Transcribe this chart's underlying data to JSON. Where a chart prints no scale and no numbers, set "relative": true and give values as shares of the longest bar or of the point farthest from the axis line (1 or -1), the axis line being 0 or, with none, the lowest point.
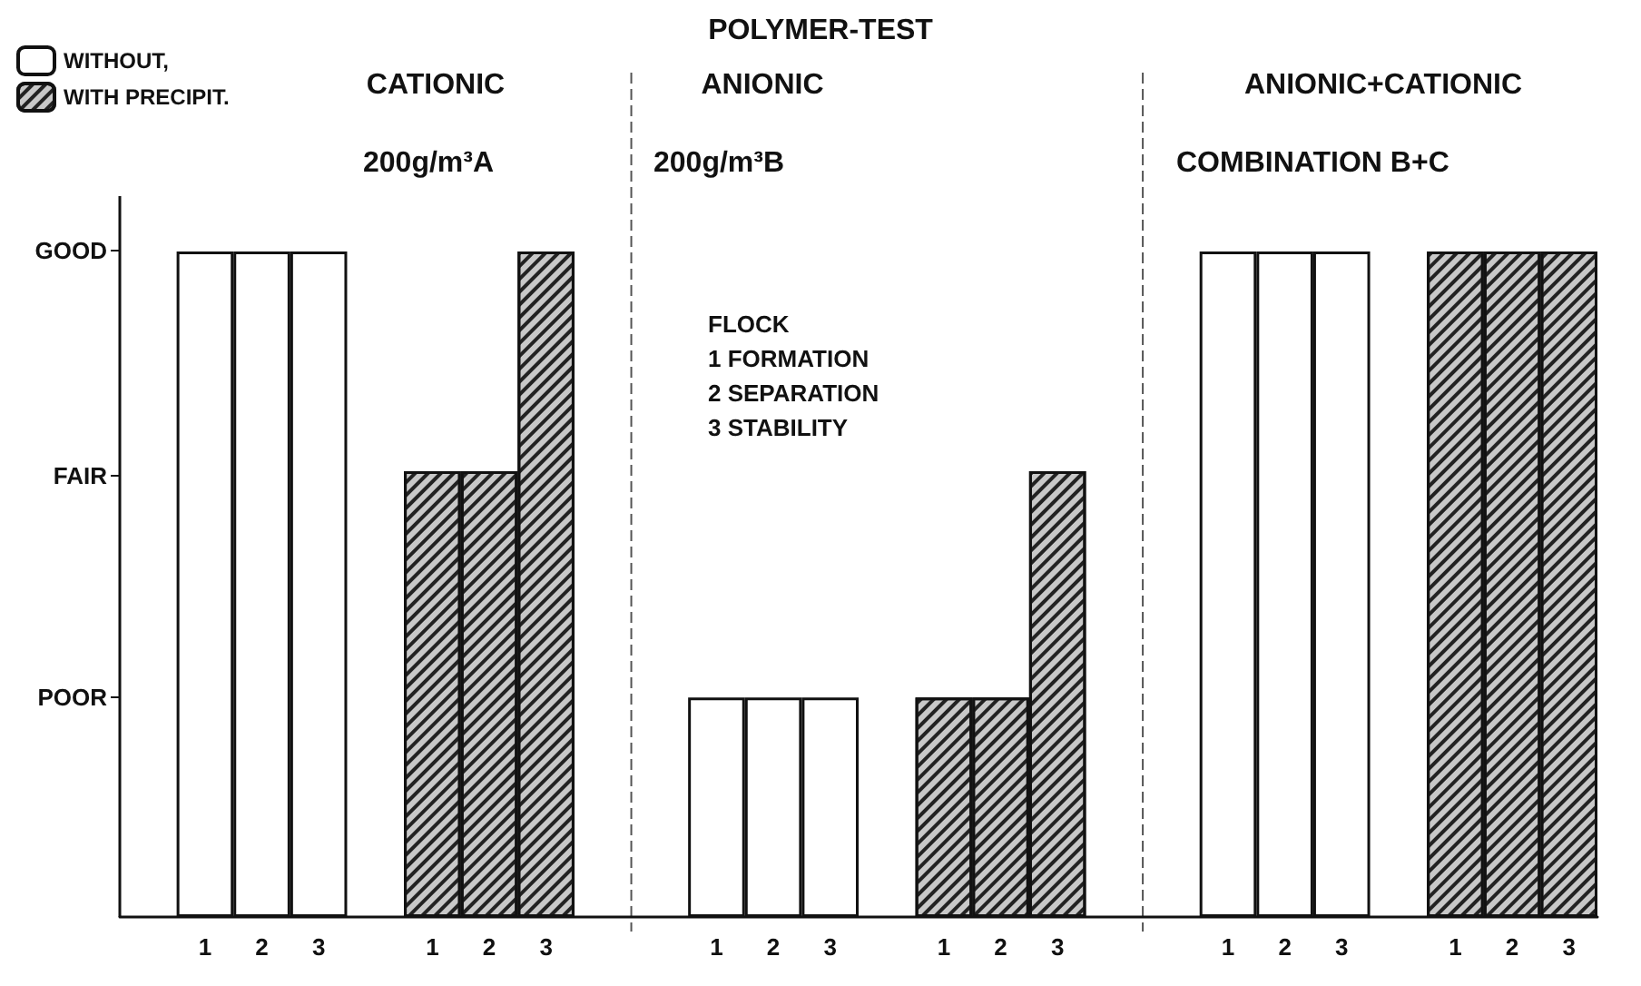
{
  "chart_data": {
    "type": "bar",
    "title": "POLYMER-TEST",
    "categories": [
      null,
      "1",
      "2",
      "3",
      null,
      "1",
      "2",
      "3",
      null,
      null,
      "1",
      "2",
      "3",
      null,
      "1",
      "2",
      "3",
      null,
      null,
      "1",
      "2",
      "3",
      null,
      "1",
      "2",
      "3"
    ],
    "series": [
      {
        "name": "WITHOUT,",
        "color": "#ffffff",
        "values": [
          null,
          1,
          1,
          1,
          null,
          null,
          null,
          null,
          null,
          null,
          0.33,
          0.33,
          0.33,
          null,
          null,
          null,
          null,
          null,
          null,
          1,
          1,
          1,
          null,
          null,
          null,
          null
        ]
      },
      {
        "name": "WITH PRECIPIT.",
        "color": "#c8c8c8",
        "values": [
          null,
          null,
          null,
          null,
          null,
          0.67,
          0.67,
          1,
          null,
          null,
          null,
          null,
          null,
          null,
          0.33,
          0.33,
          0.67,
          null,
          null,
          null,
          null,
          null,
          null,
          1,
          1,
          1
        ]
      }
    ],
    "relative": true,
    "annotations": [
      "GOOD",
      "FAIR",
      "POOR",
      "CATIONIC",
      "ANIONIC",
      "ANIONIC+CATIONIC",
      "200g/m³A",
      "200g/m³B",
      "COMBINATION B+C",
      "FLOCK\n1 FORMATION\n2 SEPARATION\n3 STABILITY"
    ],
    "legend": "top left"
  }
}
